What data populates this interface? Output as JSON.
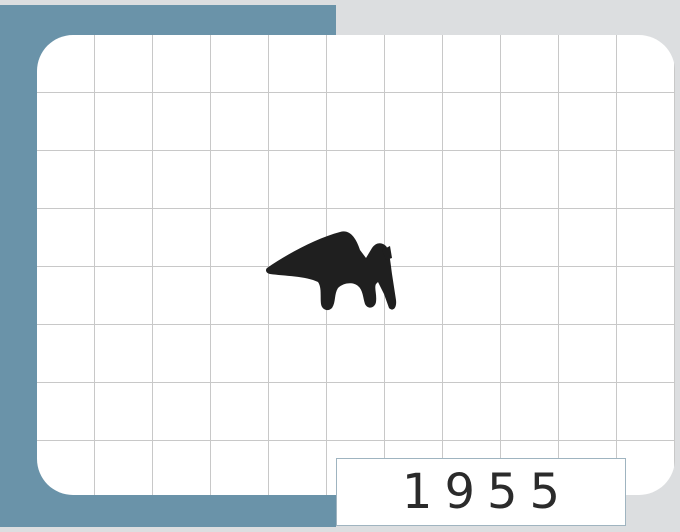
{
  "card": {
    "year": "1955"
  },
  "figure": {
    "icon": "arrowhead-creature-glyph"
  },
  "colors": {
    "teal_panel": "#6a93a9",
    "background": "#dcdee0",
    "grid_line": "#c8c8c8",
    "glyph": "#1f1f1f"
  }
}
